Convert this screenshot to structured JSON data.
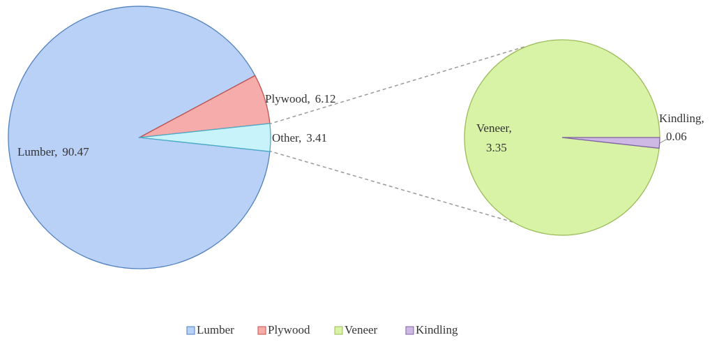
{
  "chart_data": {
    "type": "pie",
    "label_separator": ",",
    "categories": [
      "Lumber",
      "Plywood",
      "Other"
    ],
    "values": [
      90.47,
      6.12,
      3.41
    ],
    "colors": [
      "#b9d0f7",
      "#f6acab",
      "#c8f3fb"
    ],
    "edge_colors": [
      "#4f81bd",
      "#c0504d",
      "#4bacc6"
    ],
    "secondary": {
      "categories": [
        "Veneer",
        "Kindling"
      ],
      "values": [
        3.35,
        0.06
      ],
      "colors": [
        "#d8f2a6",
        "#cdb9e3"
      ],
      "edge_colors": [
        "#9bbb59",
        "#8064a2"
      ]
    },
    "legend": "bottom"
  }
}
